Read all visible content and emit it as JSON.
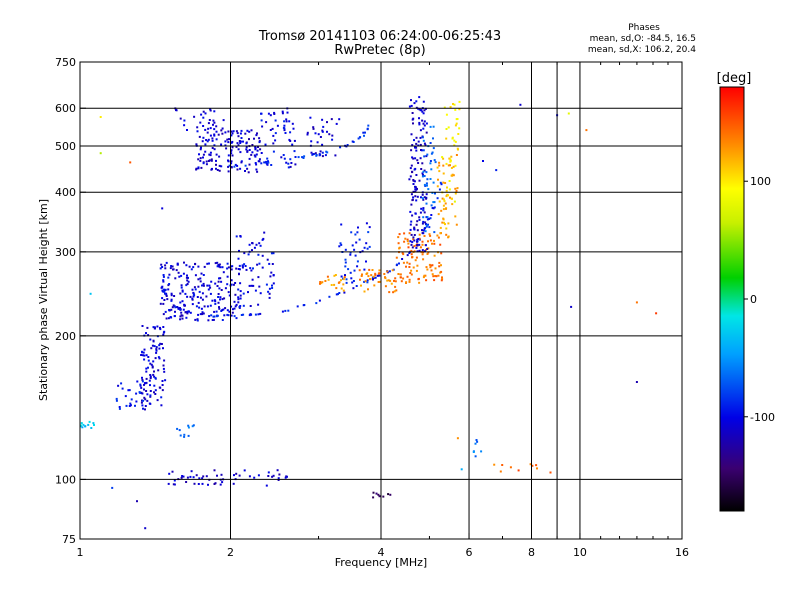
{
  "chart_data": {
    "type": "scatter",
    "title": "Tromsø 20141103 06:24:00-06:25:43",
    "subtitle": "RwPretec (8p)",
    "phase_box": {
      "heading": "Phases",
      "line1": "mean, sd,O: -84.5, 16.5",
      "line2": "mean, sd,X: 106.2, 20.4"
    },
    "xlabel": "Frequency [MHz]",
    "ylabel": "Stationary phase Virtual Height [km]",
    "x_scale": "log",
    "y_scale": "log",
    "xlim": [
      1,
      16
    ],
    "ylim": [
      75,
      750
    ],
    "xticks": [
      {
        "value": 1,
        "label": "1",
        "major": true
      },
      {
        "value": 2,
        "label": "2",
        "major": true
      },
      {
        "value": 4,
        "label": "4",
        "major": true
      },
      {
        "value": 6,
        "label": "6",
        "major": true
      },
      {
        "value": 8,
        "label": "8",
        "major": true
      },
      {
        "value": 10,
        "label": "10",
        "major": true
      },
      {
        "value": 16,
        "label": "16",
        "major": false
      }
    ],
    "xminor_gridlines": [
      9
    ],
    "yticks": [
      {
        "value": 75,
        "label": "75",
        "major": false
      },
      {
        "value": 100,
        "label": "100",
        "major": true
      },
      {
        "value": 200,
        "label": "200",
        "major": true
      },
      {
        "value": 300,
        "label": "300",
        "major": true
      },
      {
        "value": 400,
        "label": "400",
        "major": true
      },
      {
        "value": 500,
        "label": "500",
        "major": true
      },
      {
        "value": 600,
        "label": "600",
        "major": true
      },
      {
        "value": 750,
        "label": "750",
        "major": false
      }
    ],
    "grid": true,
    "colorbar": {
      "title": "[deg]",
      "range": [
        -180,
        180
      ],
      "ticks": [
        {
          "value": 100,
          "label": "100"
        },
        {
          "value": 0,
          "label": "0"
        },
        {
          "value": -100,
          "label": "-100"
        }
      ]
    },
    "trace_groups": [
      {
        "kind": "curve",
        "freq": [
          1.45,
          1.55,
          1.7,
          1.9,
          2.2,
          2.6,
          3.0,
          3.4,
          3.8,
          4.2,
          4.6,
          4.9,
          5.1,
          5.3
        ],
        "height": [
          255,
          230,
          222,
          220,
          221,
          226,
          236,
          248,
          262,
          275,
          300,
          335,
          370,
          420
        ],
        "phase": -95,
        "points": 85,
        "spread": 0.01
      },
      {
        "kind": "cloud",
        "freq": [
          1.45,
          2.1
        ],
        "height": [
          215,
          285
        ],
        "phase": -105,
        "points": 230
      },
      {
        "kind": "cloud",
        "freq": [
          2.05,
          2.45
        ],
        "height": [
          230,
          330
        ],
        "phase": -100,
        "points": 70
      },
      {
        "kind": "cloud",
        "freq": [
          3.3,
          3.8
        ],
        "height": [
          255,
          345
        ],
        "phase": -90,
        "points": 45
      },
      {
        "kind": "cloud",
        "freq": [
          3.0,
          3.4
        ],
        "height": [
          248,
          270
        ],
        "phase": 130,
        "points": 20
      },
      {
        "kind": "cloud",
        "freq": [
          3.6,
          4.4
        ],
        "height": [
          245,
          275
        ],
        "phase": 135,
        "points": 45
      },
      {
        "kind": "cloud",
        "freq": [
          4.3,
          5.3
        ],
        "height": [
          258,
          330
        ],
        "phase": 140,
        "points": 110
      },
      {
        "kind": "cloud",
        "freq": [
          5.15,
          5.7
        ],
        "height": [
          320,
          480
        ],
        "phase": 125,
        "points": 55
      },
      {
        "kind": "cloud",
        "freq": [
          5.3,
          5.75
        ],
        "height": [
          380,
          620
        ],
        "phase": 95,
        "points": 40
      },
      {
        "kind": "cloud",
        "freq": [
          4.55,
          4.95
        ],
        "height": [
          300,
          640
        ],
        "phase": -110,
        "points": 150
      },
      {
        "kind": "cloud",
        "freq": [
          4.85,
          5.15
        ],
        "height": [
          330,
          560
        ],
        "phase": -70,
        "points": 45
      },
      {
        "kind": "curve",
        "freq": [
          1.9,
          2.2,
          2.6,
          3.0,
          3.4,
          3.7,
          3.9
        ],
        "height": [
          450,
          458,
          468,
          480,
          500,
          530,
          575
        ],
        "phase": -85,
        "points": 45,
        "spread": 0.012
      },
      {
        "kind": "cloud",
        "freq": [
          1.7,
          2.3
        ],
        "height": [
          440,
          540
        ],
        "phase": -110,
        "points": 150
      },
      {
        "kind": "cloud",
        "freq": [
          1.55,
          1.95
        ],
        "height": [
          540,
          600
        ],
        "phase": -105,
        "points": 30
      },
      {
        "kind": "cloud",
        "freq": [
          2.3,
          2.7
        ],
        "height": [
          450,
          600
        ],
        "phase": -100,
        "points": 55
      },
      {
        "kind": "cloud",
        "freq": [
          2.85,
          3.3
        ],
        "height": [
          470,
          580
        ],
        "phase": -110,
        "points": 30
      },
      {
        "kind": "cloud",
        "freq": [
          1.32,
          1.48
        ],
        "height": [
          140,
          210
        ],
        "phase": -105,
        "points": 110
      },
      {
        "kind": "cloud",
        "freq": [
          1.18,
          1.35
        ],
        "height": [
          140,
          162
        ],
        "phase": -95,
        "points": 25
      },
      {
        "kind": "cloud",
        "freq": [
          1.0,
          1.07
        ],
        "height": [
          128,
          132
        ],
        "phase": -30,
        "points": 12
      },
      {
        "kind": "cloud",
        "freq": [
          1.5,
          2.6
        ],
        "height": [
          97,
          105
        ],
        "phase": -110,
        "points": 55
      },
      {
        "kind": "cloud",
        "freq": [
          1.55,
          1.7
        ],
        "height": [
          122,
          130
        ],
        "phase": -60,
        "points": 10
      },
      {
        "kind": "cloud",
        "freq": [
          3.85,
          4.2
        ],
        "height": [
          91,
          94
        ],
        "phase": -150,
        "points": 8
      },
      {
        "kind": "cloud",
        "freq": [
          6.6,
          8.8
        ],
        "height": [
          103,
          108
        ],
        "phase": 145,
        "points": 10
      },
      {
        "kind": "cloud",
        "freq": [
          6.0,
          6.4
        ],
        "height": [
          108,
          125
        ],
        "phase": -60,
        "points": 7
      }
    ],
    "isolated_points": [
      {
        "freq": 1.1,
        "height": 575,
        "phase": 100
      },
      {
        "freq": 1.1,
        "height": 483,
        "phase": 60
      },
      {
        "freq": 1.26,
        "height": 462,
        "phase": 150
      },
      {
        "freq": 1.46,
        "height": 370,
        "phase": -105
      },
      {
        "freq": 1.05,
        "height": 245,
        "phase": -30
      },
      {
        "freq": 6.4,
        "height": 465,
        "phase": -100
      },
      {
        "freq": 6.8,
        "height": 445,
        "phase": -90
      },
      {
        "freq": 7.6,
        "height": 610,
        "phase": -110
      },
      {
        "freq": 9.0,
        "height": 580,
        "phase": -100
      },
      {
        "freq": 9.5,
        "height": 585,
        "phase": 80
      },
      {
        "freq": 10.3,
        "height": 540,
        "phase": 140
      },
      {
        "freq": 9.6,
        "height": 230,
        "phase": -110
      },
      {
        "freq": 13.0,
        "height": 235,
        "phase": 140
      },
      {
        "freq": 14.2,
        "height": 223,
        "phase": 160
      },
      {
        "freq": 13.0,
        "height": 160,
        "phase": -120
      },
      {
        "freq": 1.3,
        "height": 90,
        "phase": -120
      },
      {
        "freq": 1.35,
        "height": 79,
        "phase": -110
      },
      {
        "freq": 1.16,
        "height": 96,
        "phase": -80
      },
      {
        "freq": 5.8,
        "height": 105,
        "phase": -40
      },
      {
        "freq": 5.7,
        "height": 122,
        "phase": 130
      }
    ]
  }
}
